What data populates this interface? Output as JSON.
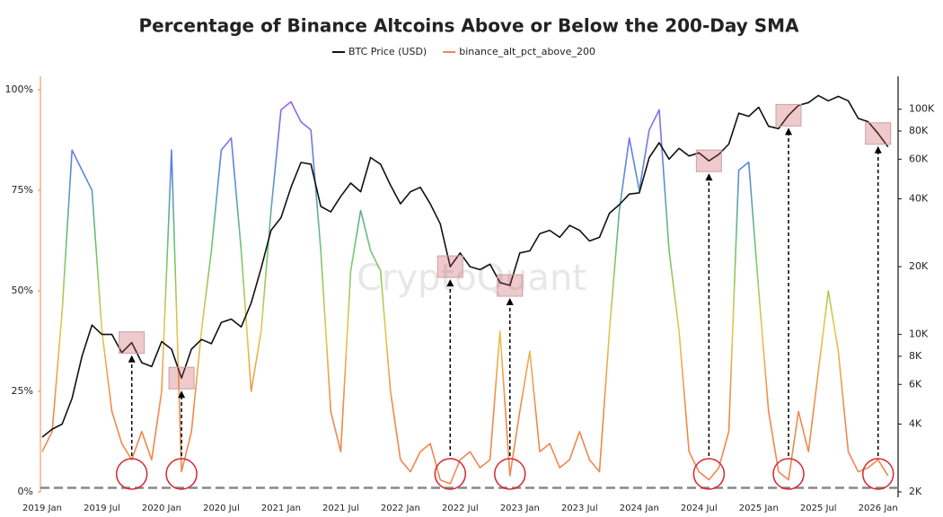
{
  "chart_data": {
    "type": "line",
    "title": "Percentage of Binance Altcoins Above or Below the 200-Day SMA",
    "watermark": "CryptoQuant",
    "legend_position": "top",
    "x": [
      "2019 Jan",
      "2019 Feb",
      "2019 Mar",
      "2019 Apr",
      "2019 May",
      "2019 Jun",
      "2019 Jul",
      "2019 Aug",
      "2019 Sep",
      "2019 Oct",
      "2019 Nov",
      "2019 Dec",
      "2020 Jan",
      "2020 Feb",
      "2020 Mar",
      "2020 Apr",
      "2020 May",
      "2020 Jun",
      "2020 Jul",
      "2020 Aug",
      "2020 Sep",
      "2020 Oct",
      "2020 Nov",
      "2020 Dec",
      "2021 Jan",
      "2021 Feb",
      "2021 Mar",
      "2021 Apr",
      "2021 May",
      "2021 Jun",
      "2021 Jul",
      "2021 Aug",
      "2021 Sep",
      "2021 Oct",
      "2021 Nov",
      "2021 Dec",
      "2022 Jan",
      "2022 Feb",
      "2022 Mar",
      "2022 Apr",
      "2022 May",
      "2022 Jun",
      "2022 Jul",
      "2022 Aug",
      "2022 Sep",
      "2022 Oct",
      "2022 Nov",
      "2022 Dec",
      "2023 Jan",
      "2023 Feb",
      "2023 Mar",
      "2023 Apr",
      "2023 May",
      "2023 Jun",
      "2023 Jul",
      "2023 Aug",
      "2023 Sep",
      "2023 Oct",
      "2023 Nov",
      "2023 Dec",
      "2024 Jan",
      "2024 Feb",
      "2024 Mar",
      "2024 Apr",
      "2024 May",
      "2024 Jun",
      "2024 Jul",
      "2024 Aug",
      "2024 Sep",
      "2024 Oct",
      "2024 Nov",
      "2024 Dec",
      "2025 Jan",
      "2025 Feb",
      "2025 Mar",
      "2025 Apr",
      "2025 May",
      "2025 Jun",
      "2025 Jul",
      "2025 Aug",
      "2025 Sep",
      "2025 Oct",
      "2025 Nov",
      "2025 Dec",
      "2026 Jan",
      "2026 Feb"
    ],
    "xticks": [
      "2019 Jan",
      "2019 Jul",
      "2020 Jan",
      "2020 Jul",
      "2021 Jan",
      "2021 Jul",
      "2022 Jan",
      "2022 Jul",
      "2023 Jan",
      "2023 Jul",
      "2024 Jan",
      "2024 Jul",
      "2025 Jan",
      "2025 Jul",
      "2026 Jan"
    ],
    "series": [
      {
        "name": "BTC Price (USD)",
        "color": "#111111",
        "axis": "y2",
        "values": [
          3500,
          3800,
          4000,
          5200,
          8000,
          11000,
          10000,
          10000,
          8300,
          9200,
          7500,
          7200,
          9300,
          8600,
          6400,
          8600,
          9500,
          9100,
          11300,
          11700,
          10800,
          13800,
          19700,
          29000,
          33000,
          45000,
          58000,
          57000,
          37000,
          35000,
          41000,
          47000,
          43000,
          61000,
          57000,
          46000,
          38000,
          43000,
          45000,
          38000,
          31000,
          20000,
          23000,
          20000,
          19400,
          20500,
          17000,
          16500,
          23000,
          23500,
          28000,
          29000,
          27000,
          30500,
          29000,
          26000,
          27000,
          34500,
          37700,
          42000,
          42500,
          61000,
          71000,
          60000,
          67000,
          62000,
          64000,
          59000,
          63000,
          70000,
          96000,
          93000,
          102000,
          84000,
          82000,
          94000,
          104000,
          107000,
          115000,
          109000,
          114000,
          109000,
          91000,
          88000,
          78000,
          68000
        ]
      },
      {
        "name": "binance_alt_pct_above_200",
        "color": [
          "#f0874e",
          "#f0874e",
          "#e9c64a",
          "#6cc86a",
          "#5a86e6",
          "#a35cf2"
        ],
        "values": [
          10,
          15,
          45,
          85,
          80,
          75,
          40,
          20,
          12,
          8,
          15,
          8,
          25,
          85,
          5,
          15,
          40,
          60,
          85,
          88,
          60,
          25,
          40,
          70,
          95,
          97,
          92,
          90,
          60,
          20,
          10,
          55,
          70,
          60,
          55,
          25,
          8,
          5,
          10,
          12,
          3,
          2,
          8,
          10,
          6,
          8,
          40,
          4,
          20,
          35,
          10,
          12,
          6,
          8,
          15,
          8,
          5,
          40,
          70,
          88,
          75,
          90,
          95,
          60,
          40,
          10,
          5,
          3,
          6,
          15,
          80,
          82,
          50,
          20,
          5,
          3,
          20,
          10,
          30,
          50,
          35,
          10,
          5,
          6,
          8,
          4
        ]
      }
    ],
    "ylim": [
      0,
      100
    ],
    "yticks": [
      {
        "value": 0,
        "label": "0%"
      },
      {
        "value": 25,
        "label": "25%"
      },
      {
        "value": 50,
        "label": "50%"
      },
      {
        "value": 75,
        "label": "75%"
      },
      {
        "value": 100,
        "label": "100%"
      }
    ],
    "y2lim": [
      2000,
      122000
    ],
    "y2_log": true,
    "y2ticks": [
      {
        "value": 2000,
        "label": "2K"
      },
      {
        "value": 4000,
        "label": "4K"
      },
      {
        "value": 6000,
        "label": "6K"
      },
      {
        "value": 8000,
        "label": "8K"
      },
      {
        "value": 10000,
        "label": "10K"
      },
      {
        "value": 20000,
        "label": "20K"
      },
      {
        "value": 40000,
        "label": "40K"
      },
      {
        "value": 60000,
        "label": "60K"
      },
      {
        "value": 80000,
        "label": "80K"
      },
      {
        "value": 100000,
        "label": "100K"
      }
    ],
    "reference_line": 1,
    "highlights": [
      "2019 Oct",
      "2020 Mar",
      "2022 Jun",
      "2022 Dec",
      "2024 Aug",
      "2025 Apr",
      "2026 Jan"
    ]
  }
}
